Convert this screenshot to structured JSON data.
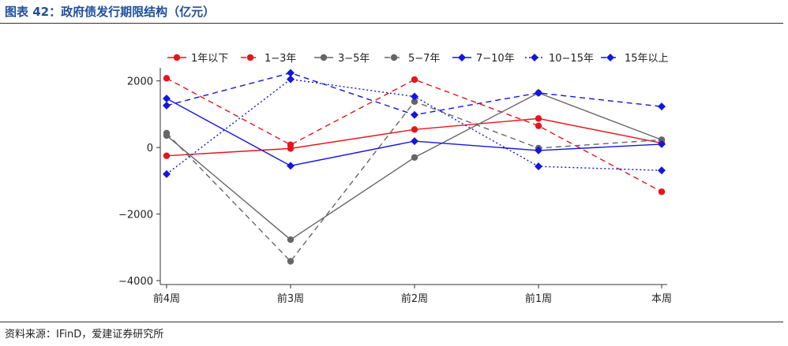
{
  "figure": {
    "title": "图表 42：政府债发行期限结构（亿元）",
    "source": "资料来源：IFinD，爱建证券研究所"
  },
  "colors": {
    "red": "#e8141b",
    "gray": "#666666",
    "blue": "#1515e0"
  },
  "chart_data": {
    "type": "line",
    "categories": [
      "前4周",
      "前3周",
      "前2周",
      "前1周",
      "本周"
    ],
    "ylim": [
      -4000,
      2300
    ],
    "yticks": [
      2000,
      0,
      -2000,
      -4000
    ],
    "ytick_labels": [
      "2000",
      "0",
      "−2000",
      "−4000"
    ],
    "grid": false,
    "legend_position": "top",
    "series": [
      {
        "name": "1年以下",
        "color": "#e8141b",
        "dash": "solid",
        "marker": "circle",
        "values": [
          -250,
          -30,
          540,
          870,
          130
        ]
      },
      {
        "name": "1−3年",
        "color": "#e8141b",
        "dash": "dash",
        "marker": "circle",
        "values": [
          2080,
          80,
          2040,
          650,
          -1330
        ]
      },
      {
        "name": "3−5年",
        "color": "#666666",
        "dash": "solid",
        "marker": "circle",
        "values": [
          360,
          -2770,
          -300,
          1640,
          230
        ]
      },
      {
        "name": "5−7年",
        "color": "#666666",
        "dash": "dash",
        "marker": "circle",
        "values": [
          430,
          -3420,
          1380,
          -20,
          230
        ]
      },
      {
        "name": "7−10年",
        "color": "#1515e0",
        "dash": "solid",
        "marker": "diamond",
        "values": [
          1470,
          -550,
          190,
          -90,
          100
        ]
      },
      {
        "name": "10−15年",
        "color": "#1515e0",
        "dash": "dot",
        "marker": "diamond",
        "values": [
          -800,
          2050,
          1530,
          -570,
          -690
        ]
      },
      {
        "name": "15年以上",
        "color": "#1515e0",
        "dash": "dash",
        "marker": "diamond",
        "values": [
          1260,
          2240,
          980,
          1640,
          1230
        ]
      }
    ]
  }
}
